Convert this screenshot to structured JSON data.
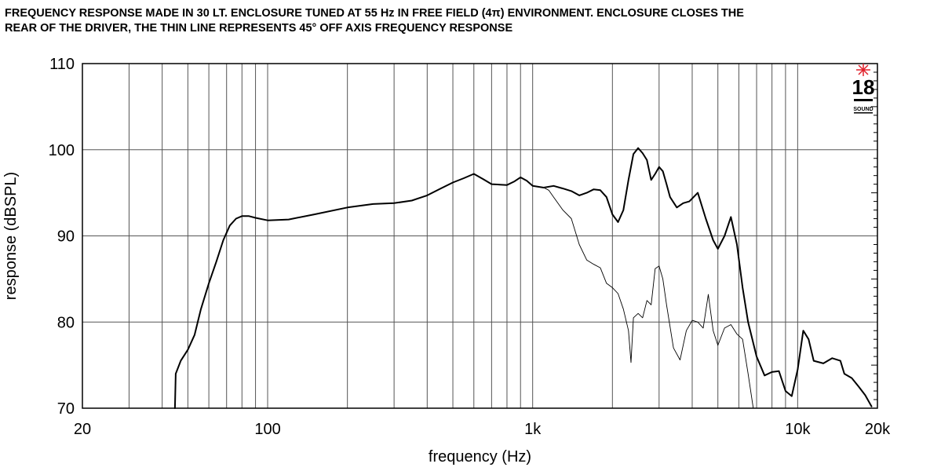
{
  "header": {
    "line1": "FREQUENCY RESPONSE MADE IN 30 LT. ENCLOSURE TUNED AT 55 Hz IN FREE FIELD (4π) ENVIRONMENT. ENCLOSURE CLOSES THE",
    "line2": "REAR OF THE DRIVER, THE THIN LINE REPRESENTS 45° OFF AXIS FREQUENCY RESPONSE"
  },
  "logo": {
    "number": "18",
    "word": "SOUND",
    "accent_color": "#e0202a"
  },
  "chart_data": {
    "type": "line",
    "xlabel": "frequency (Hz)",
    "ylabel": "response (dBSPL)",
    "xscale": "log",
    "xlim": [
      20,
      20000
    ],
    "ylim": [
      70,
      110
    ],
    "grid": true,
    "x_tick_values": [
      20,
      100,
      1000,
      10000,
      20000
    ],
    "x_tick_labels": [
      "20",
      "100",
      "1k",
      "10k",
      "20k"
    ],
    "y_tick_values": [
      70,
      80,
      90,
      100,
      110
    ],
    "y_tick_labels": [
      "70",
      "80",
      "90",
      "100",
      "110"
    ],
    "series": [
      {
        "style": "thick",
        "color": "#000000",
        "points": [
          [
            44.7,
            70
          ],
          [
            45,
            74
          ],
          [
            47,
            75.5
          ],
          [
            50,
            76.8
          ],
          [
            53,
            78.5
          ],
          [
            56,
            81.5
          ],
          [
            60,
            84.5
          ],
          [
            64,
            87
          ],
          [
            68,
            89.5
          ],
          [
            72,
            91.2
          ],
          [
            76,
            92
          ],
          [
            80,
            92.3
          ],
          [
            85,
            92.3
          ],
          [
            90,
            92.1
          ],
          [
            100,
            91.8
          ],
          [
            120,
            91.9
          ],
          [
            150,
            92.5
          ],
          [
            200,
            93.3
          ],
          [
            250,
            93.7
          ],
          [
            300,
            93.8
          ],
          [
            350,
            94.1
          ],
          [
            400,
            94.7
          ],
          [
            450,
            95.5
          ],
          [
            500,
            96.2
          ],
          [
            550,
            96.7
          ],
          [
            600,
            97.2
          ],
          [
            650,
            96.6
          ],
          [
            700,
            96
          ],
          [
            800,
            95.9
          ],
          [
            850,
            96.3
          ],
          [
            900,
            96.8
          ],
          [
            950,
            96.4
          ],
          [
            1000,
            95.8
          ],
          [
            1100,
            95.6
          ],
          [
            1200,
            95.8
          ],
          [
            1300,
            95.5
          ],
          [
            1400,
            95.2
          ],
          [
            1500,
            94.7
          ],
          [
            1600,
            95
          ],
          [
            1700,
            95.4
          ],
          [
            1800,
            95.3
          ],
          [
            1900,
            94.5
          ],
          [
            2000,
            92.5
          ],
          [
            2100,
            91.6
          ],
          [
            2200,
            93
          ],
          [
            2300,
            96.5
          ],
          [
            2400,
            99.5
          ],
          [
            2500,
            100.2
          ],
          [
            2600,
            99.6
          ],
          [
            2700,
            98.8
          ],
          [
            2800,
            96.5
          ],
          [
            2900,
            97.2
          ],
          [
            3000,
            98
          ],
          [
            3100,
            97.5
          ],
          [
            3200,
            96
          ],
          [
            3300,
            94.5
          ],
          [
            3500,
            93.3
          ],
          [
            3700,
            93.8
          ],
          [
            3900,
            94
          ],
          [
            4200,
            95
          ],
          [
            4500,
            92
          ],
          [
            4800,
            89.5
          ],
          [
            5000,
            88.5
          ],
          [
            5300,
            90
          ],
          [
            5600,
            92.2
          ],
          [
            5900,
            89
          ],
          [
            6200,
            84
          ],
          [
            6500,
            80
          ],
          [
            7000,
            76
          ],
          [
            7500,
            73.8
          ],
          [
            8000,
            74.2
          ],
          [
            8500,
            74.3
          ],
          [
            9000,
            72
          ],
          [
            9500,
            71.4
          ],
          [
            10000,
            74.5
          ],
          [
            10500,
            79
          ],
          [
            11000,
            78
          ],
          [
            11500,
            75.5
          ],
          [
            12500,
            75.2
          ],
          [
            13500,
            75.8
          ],
          [
            14500,
            75.5
          ],
          [
            15000,
            74
          ],
          [
            16000,
            73.5
          ],
          [
            17000,
            72.5
          ],
          [
            18000,
            71.5
          ],
          [
            19000,
            70.2
          ]
        ]
      },
      {
        "style": "thin",
        "color": "#000000",
        "points": [
          [
            1000,
            95.8
          ],
          [
            1100,
            95.6
          ],
          [
            1150,
            95.3
          ],
          [
            1200,
            94.5
          ],
          [
            1300,
            93
          ],
          [
            1400,
            92
          ],
          [
            1500,
            89
          ],
          [
            1600,
            87.2
          ],
          [
            1700,
            86.7
          ],
          [
            1800,
            86.3
          ],
          [
            1900,
            84.5
          ],
          [
            2000,
            84
          ],
          [
            2100,
            83.3
          ],
          [
            2200,
            81.5
          ],
          [
            2300,
            79
          ],
          [
            2350,
            75.3
          ],
          [
            2400,
            80.5
          ],
          [
            2500,
            81
          ],
          [
            2600,
            80.5
          ],
          [
            2700,
            82.5
          ],
          [
            2800,
            82
          ],
          [
            2900,
            86.2
          ],
          [
            3000,
            86.5
          ],
          [
            3100,
            85
          ],
          [
            3200,
            82
          ],
          [
            3400,
            77
          ],
          [
            3600,
            75.6
          ],
          [
            3800,
            79
          ],
          [
            4000,
            80.2
          ],
          [
            4200,
            80
          ],
          [
            4400,
            79.3
          ],
          [
            4600,
            83.2
          ],
          [
            4800,
            79
          ],
          [
            5000,
            77.3
          ],
          [
            5300,
            79.3
          ],
          [
            5600,
            79.7
          ],
          [
            5900,
            78.6
          ],
          [
            6200,
            78
          ],
          [
            6500,
            74
          ],
          [
            6800,
            70
          ]
        ]
      }
    ]
  }
}
